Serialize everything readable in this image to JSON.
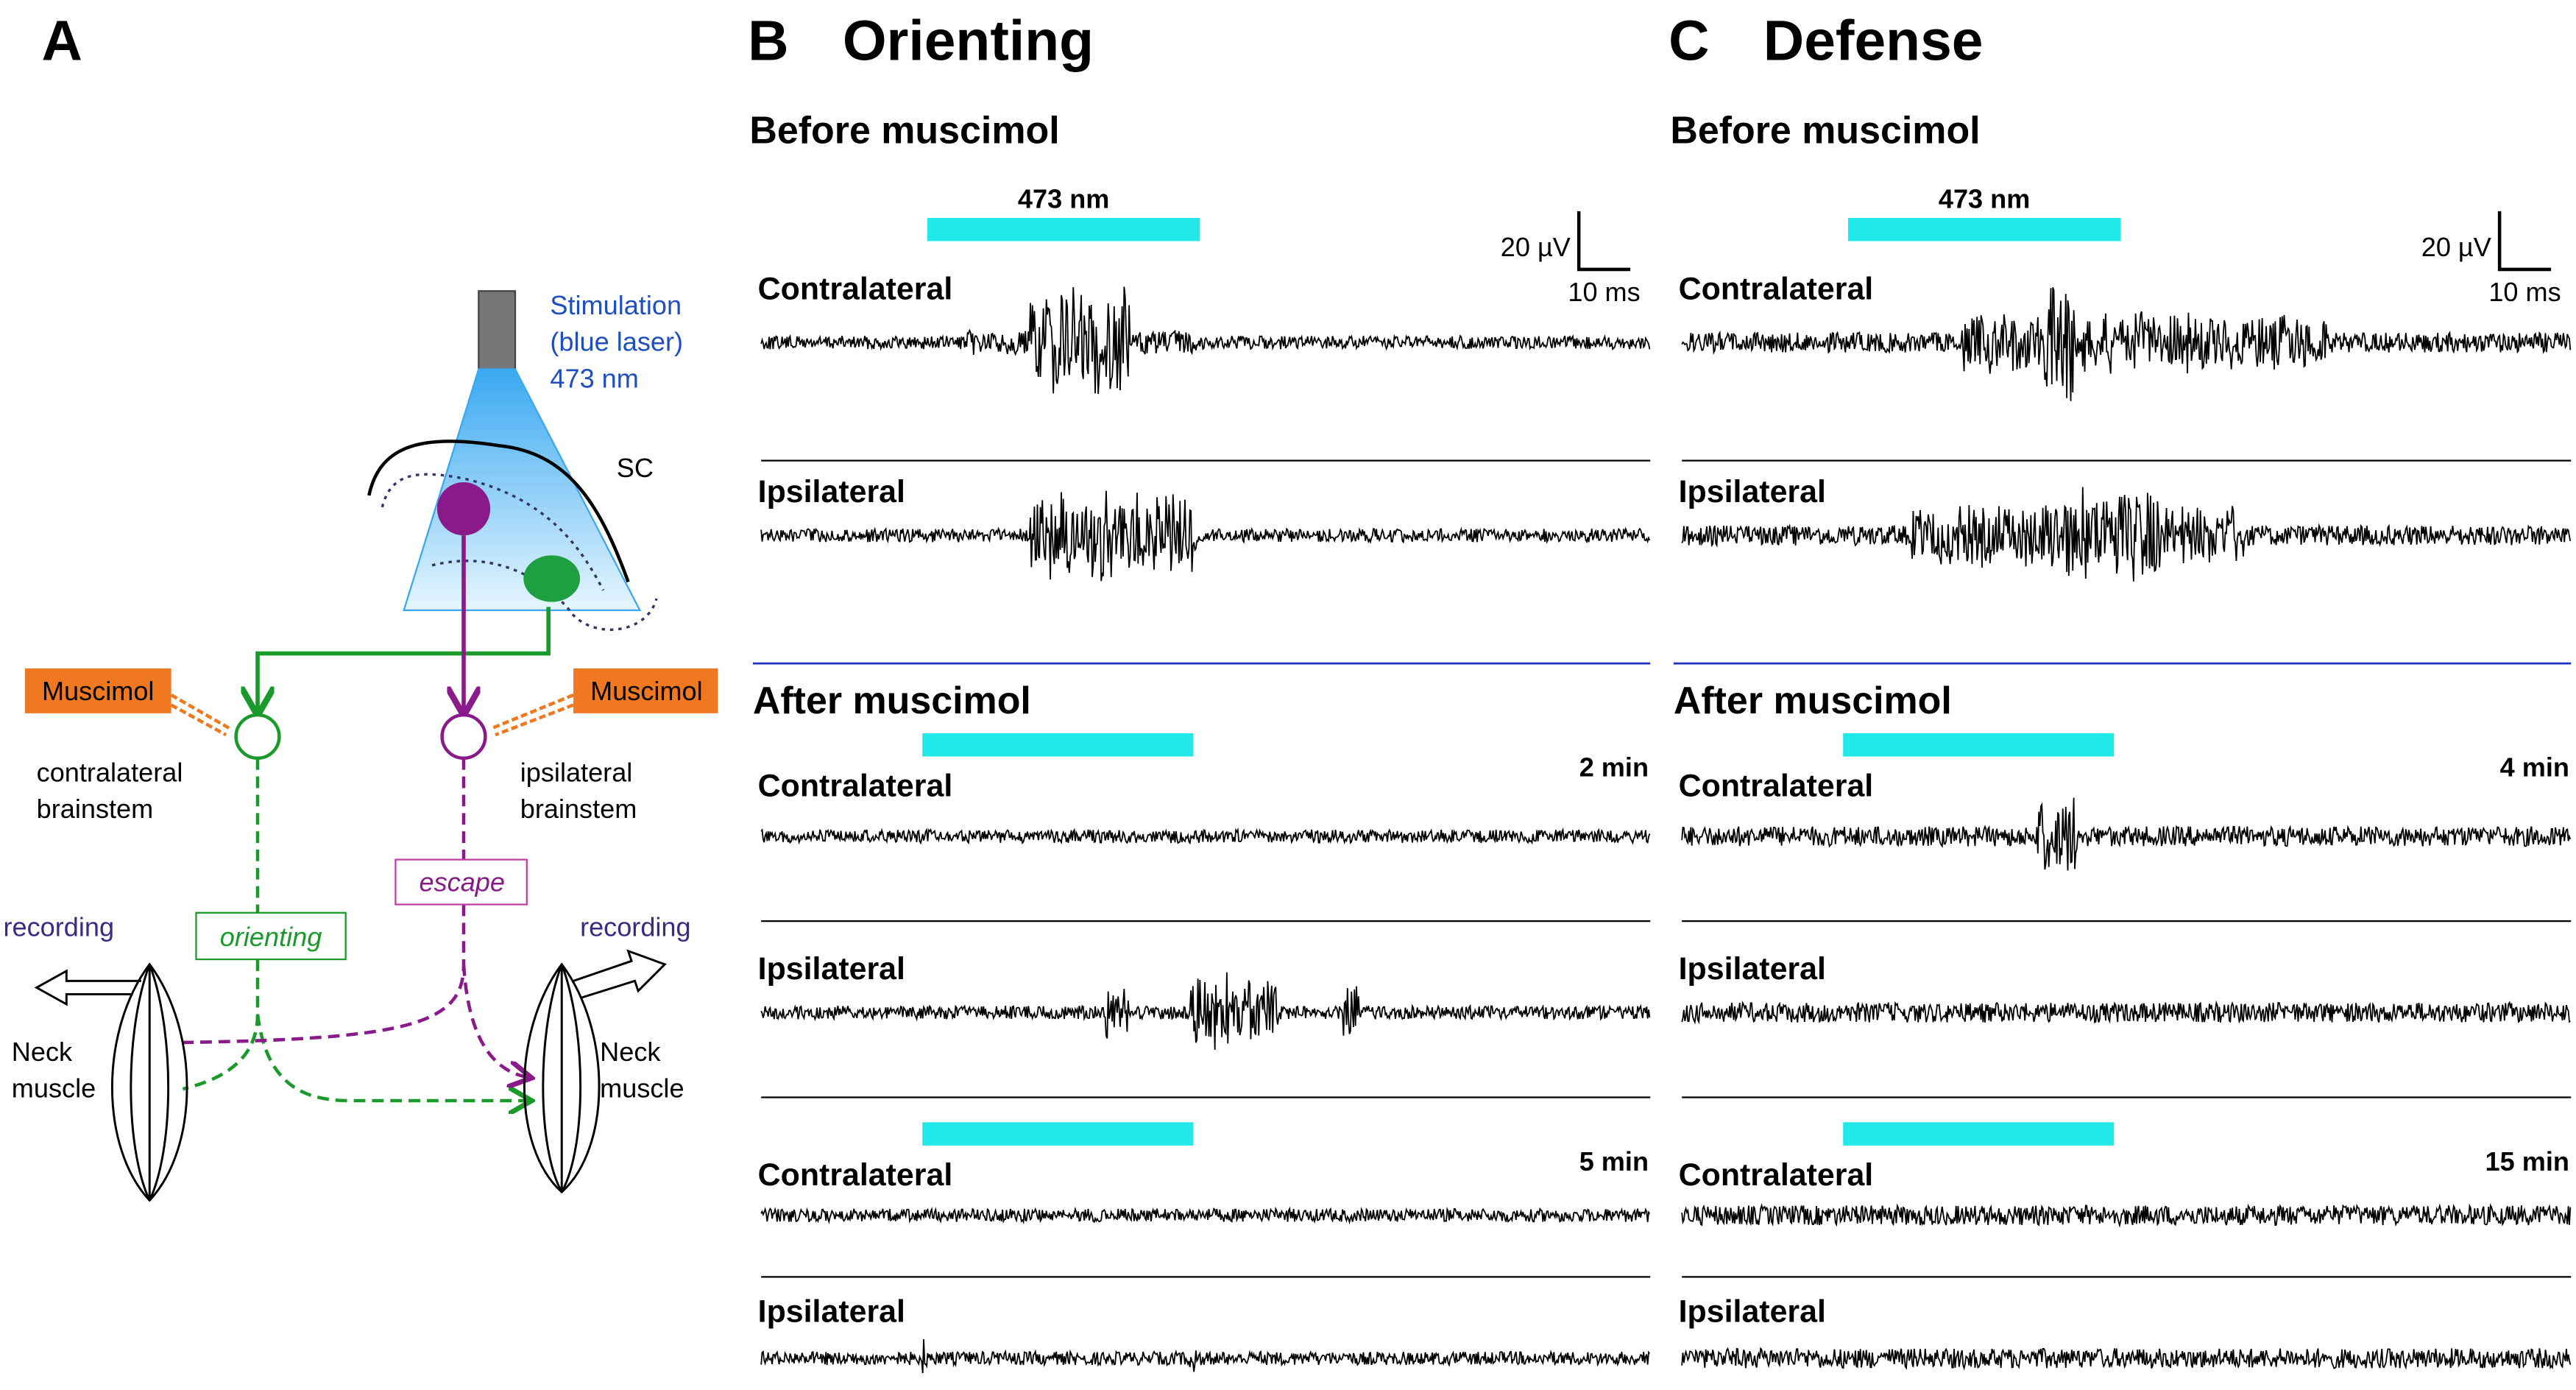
{
  "panel_a": {
    "label": "A",
    "laser": [
      "Stimulation",
      "(blue laser)",
      "473 nm"
    ],
    "region": "SC",
    "drug_left": "Muscimol",
    "drug_right": "Muscimol",
    "left_nucleus": [
      "contralateral",
      "brainstem"
    ],
    "right_nucleus": [
      "ipsilateral",
      "brainstem"
    ],
    "left_pathway": "orienting",
    "right_pathway": "escape",
    "left_recording": "recording",
    "right_recording": "recording",
    "left_muscle": [
      "Neck",
      "muscle"
    ],
    "right_muscle": [
      "Neck",
      "muscle"
    ]
  },
  "panels": [
    {
      "label": "B",
      "title": "Orienting",
      "before": {
        "heading": "Before muscimol",
        "stimulus": "473 nm",
        "scale_y": "20 µV",
        "scale_x": "10 ms",
        "traces": [
          "Contralateral",
          "Ipsilateral"
        ]
      },
      "after": {
        "heading": "After muscimol",
        "blocks": [
          {
            "time": "2 min",
            "traces": [
              "Contralateral",
              "Ipsilateral"
            ]
          },
          {
            "time": "5 min",
            "traces": [
              "Contralateral",
              "Ipsilateral"
            ]
          }
        ]
      }
    },
    {
      "label": "C",
      "title": "Defense",
      "before": {
        "heading": "Before muscimol",
        "stimulus": "473 nm",
        "scale_y": "20 µV",
        "scale_x": "10 ms",
        "traces": [
          "Contralateral",
          "Ipsilateral"
        ]
      },
      "after": {
        "heading": "After muscimol",
        "blocks": [
          {
            "time": "4 min",
            "traces": [
              "Contralateral",
              "Ipsilateral"
            ]
          },
          {
            "time": "15 min",
            "traces": [
              "Contralateral",
              "Ipsilateral"
            ]
          }
        ]
      }
    }
  ]
}
